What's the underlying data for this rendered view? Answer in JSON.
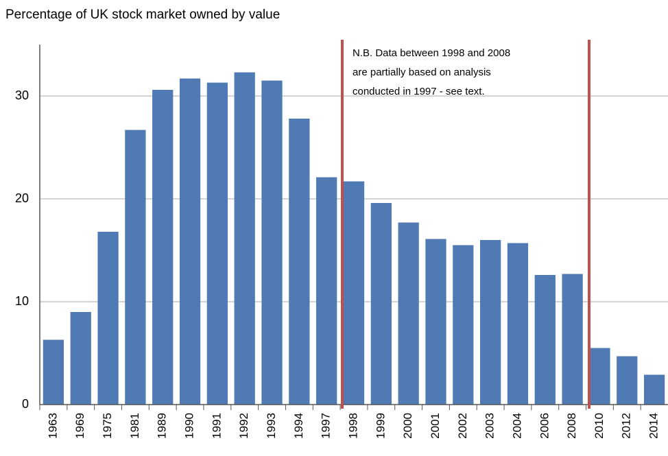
{
  "chart_data": {
    "type": "bar",
    "title": "Percentage of UK stock market owned by value",
    "categories": [
      "1963",
      "1969",
      "1975",
      "1981",
      "1989",
      "1990",
      "1991",
      "1992",
      "1993",
      "1994",
      "1997",
      "1998",
      "1999",
      "2000",
      "2001",
      "2002",
      "2003",
      "2004",
      "2006",
      "2008",
      "2010",
      "2012",
      "2014"
    ],
    "values": [
      6.3,
      9.0,
      16.8,
      26.7,
      30.6,
      31.7,
      31.3,
      32.3,
      31.5,
      27.8,
      22.1,
      21.7,
      19.6,
      17.7,
      16.1,
      15.5,
      16.0,
      15.7,
      12.6,
      12.7,
      5.5,
      4.7,
      2.9
    ],
    "color": "#4f7ab3",
    "ylim": [
      0,
      35
    ],
    "yticks": [
      0,
      10,
      20,
      30
    ],
    "grid": true,
    "annotation": [
      "N.B. Data between 1998  and 2008",
      "are partially based on analysis",
      "conducted in 1997 - see text."
    ]
  }
}
